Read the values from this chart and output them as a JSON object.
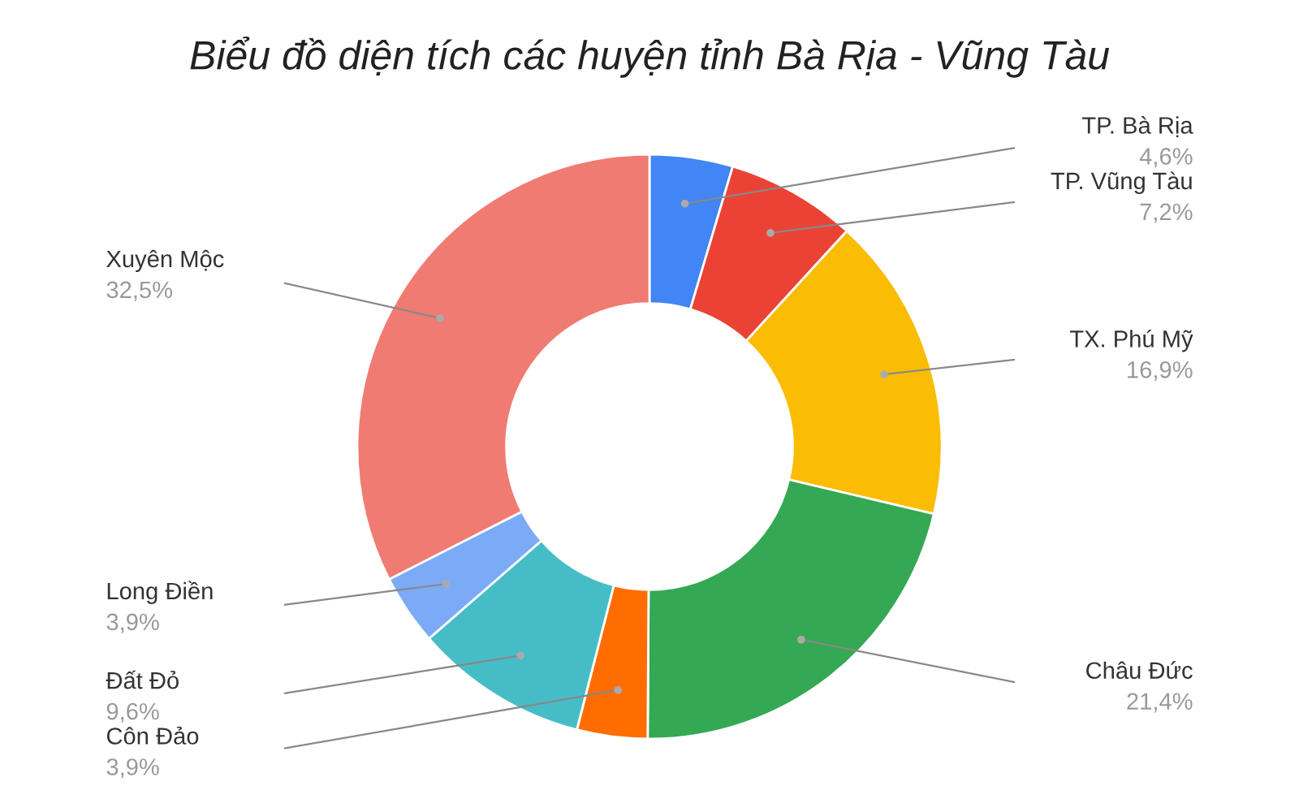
{
  "chart_data": {
    "type": "donut",
    "title": "Biểu đồ diện tích các huyện tỉnh Bà Rịa - Vũng Tàu",
    "categories": [
      "TP. Bà Rịa",
      "TP. Vũng Tàu",
      "TX. Phú Mỹ",
      "Châu Đức",
      "Côn Đảo",
      "Đất Đỏ",
      "Long Điền",
      "Xuyên Mộc"
    ],
    "values": [
      4.6,
      7.2,
      16.9,
      21.4,
      3.9,
      9.6,
      3.9,
      32.5
    ],
    "value_labels": [
      "4,6%",
      "7,2%",
      "16,9%",
      "21,4%",
      "3,9%",
      "9,6%",
      "3,9%",
      "32,5%"
    ],
    "colors": [
      "#4285f4",
      "#ea4335",
      "#fbbc04",
      "#34a853",
      "#ff6d01",
      "#46bdc6",
      "#7baaf7",
      "#f07b72"
    ],
    "legend": false
  }
}
